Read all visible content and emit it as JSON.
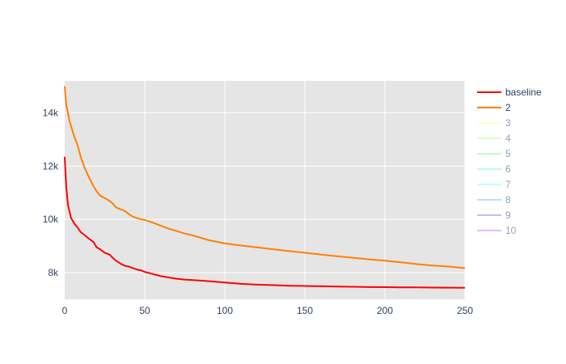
{
  "chart_data": {
    "type": "line",
    "title": "",
    "xlabel": "",
    "ylabel": "",
    "xlim": [
      0,
      250
    ],
    "ylim": [
      7000,
      15200
    ],
    "x_ticks": [
      0,
      50,
      100,
      150,
      200,
      250
    ],
    "x_tick_labels": [
      "0",
      "50",
      "100",
      "150",
      "200",
      "250"
    ],
    "y_ticks": [
      8000,
      10000,
      12000,
      14000
    ],
    "y_tick_labels": [
      "8k",
      "10k",
      "12k",
      "14k"
    ],
    "grid": true,
    "plot_background": "#e5e5e5",
    "grid_color": "#ffffff",
    "legend_position": "right",
    "series": [
      {
        "name": "baseline",
        "color": "#ff0000",
        "visible": true,
        "x": [
          0,
          1,
          2,
          3,
          4,
          5,
          6,
          8,
          10,
          12,
          15,
          18,
          20,
          22,
          25,
          28,
          30,
          32,
          35,
          38,
          40,
          42,
          45,
          48,
          50,
          55,
          60,
          65,
          70,
          75,
          80,
          90,
          100,
          110,
          120,
          130,
          140,
          150,
          160,
          170,
          180,
          190,
          200,
          210,
          220,
          230,
          240,
          250
        ],
        "y": [
          12350,
          11200,
          10550,
          10300,
          10050,
          9950,
          9850,
          9700,
          9520,
          9430,
          9280,
          9150,
          8950,
          8880,
          8750,
          8680,
          8560,
          8450,
          8330,
          8250,
          8230,
          8180,
          8120,
          8080,
          8030,
          7950,
          7870,
          7820,
          7770,
          7740,
          7720,
          7680,
          7630,
          7580,
          7550,
          7530,
          7510,
          7500,
          7490,
          7480,
          7470,
          7460,
          7455,
          7450,
          7445,
          7440,
          7438,
          7435
        ]
      },
      {
        "name": "2",
        "color": "#ff8000",
        "visible": true,
        "x": [
          0,
          1,
          2,
          3,
          4,
          5,
          6,
          8,
          10,
          12,
          15,
          18,
          20,
          22,
          25,
          28,
          30,
          32,
          35,
          38,
          40,
          42,
          45,
          48,
          50,
          55,
          60,
          65,
          70,
          75,
          80,
          90,
          100,
          110,
          120,
          130,
          140,
          150,
          160,
          170,
          180,
          190,
          200,
          210,
          220,
          230,
          240,
          250
        ],
        "y": [
          15000,
          14300,
          14000,
          13700,
          13500,
          13300,
          13100,
          12800,
          12350,
          12000,
          11600,
          11250,
          11050,
          10900,
          10800,
          10700,
          10600,
          10450,
          10380,
          10300,
          10200,
          10120,
          10050,
          10000,
          9980,
          9880,
          9760,
          9650,
          9560,
          9470,
          9400,
          9220,
          9100,
          9020,
          8950,
          8880,
          8810,
          8750,
          8680,
          8620,
          8560,
          8500,
          8450,
          8390,
          8320,
          8270,
          8230,
          8170
        ]
      },
      {
        "name": "3",
        "color": "#ffff80",
        "visible": false
      },
      {
        "name": "4",
        "color": "#c0ff80",
        "visible": false
      },
      {
        "name": "5",
        "color": "#80ff80",
        "visible": false
      },
      {
        "name": "6",
        "color": "#80ffc0",
        "visible": false
      },
      {
        "name": "7",
        "color": "#80ffff",
        "visible": false
      },
      {
        "name": "8",
        "color": "#80c0ff",
        "visible": false
      },
      {
        "name": "9",
        "color": "#8080ff",
        "visible": false
      },
      {
        "name": "10",
        "color": "#c080ff",
        "visible": false
      }
    ]
  }
}
